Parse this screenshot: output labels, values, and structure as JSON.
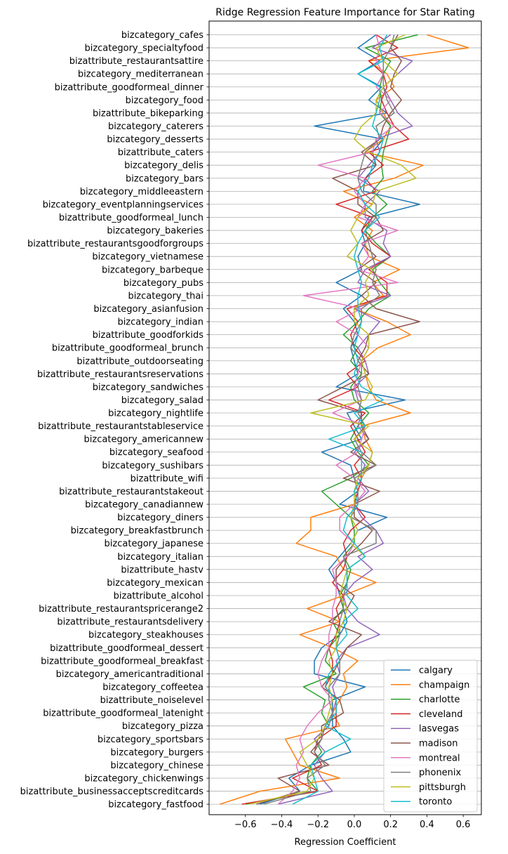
{
  "chart_data": {
    "type": "line",
    "orientation": "horizontal",
    "title": "Ridge Regression Feature Importance for Star Rating",
    "xlabel": "Regression Coefficient",
    "ylabel": "",
    "xlim": [
      -0.8,
      0.7
    ],
    "xticks": [
      -0.6,
      -0.4,
      -0.2,
      0.0,
      0.2,
      0.4,
      0.6
    ],
    "xtick_labels": [
      "−0.6",
      "−0.4",
      "−0.2",
      "0.0",
      "0.2",
      "0.4",
      "0.6"
    ],
    "grid": "horizontal",
    "legend_position": "lower-right",
    "categories": [
      "bizcategory_cafes",
      "bizcategory_specialtyfood",
      "bizattribute_restaurantsattire",
      "bizcategory_mediterranean",
      "bizattribute_goodformeal_dinner",
      "bizcategory_food",
      "bizattribute_bikeparking",
      "bizcategory_caterers",
      "bizcategory_desserts",
      "bizattribute_caters",
      "bizcategory_delis",
      "bizcategory_bars",
      "bizcategory_middleeastern",
      "bizcategory_eventplanningservices",
      "bizattribute_goodformeal_lunch",
      "bizcategory_bakeries",
      "bizattribute_restaurantsgoodforgroups",
      "bizcategory_vietnamese",
      "bizcategory_barbeque",
      "bizcategory_pubs",
      "bizcategory_thai",
      "bizcategory_asianfusion",
      "bizcategory_indian",
      "bizattribute_goodforkids",
      "bizattribute_goodformeal_brunch",
      "bizattribute_outdoorseating",
      "bizattribute_restaurantsreservations",
      "bizcategory_sandwiches",
      "bizcategory_salad",
      "bizcategory_nightlife",
      "bizattribute_restaurantstableservice",
      "bizcategory_americannew",
      "bizcategory_seafood",
      "bizcategory_sushibars",
      "bizattribute_wifi",
      "bizattribute_restaurantstakeout",
      "bizcategory_canadiannew",
      "bizcategory_diners",
      "bizcategory_breakfastbrunch",
      "bizcategory_japanese",
      "bizcategory_italian",
      "bizattribute_hastv",
      "bizcategory_mexican",
      "bizattribute_alcohol",
      "bizattribute_restaurantspricerange2",
      "bizattribute_restaurantsdelivery",
      "bizcategory_steakhouses",
      "bizattribute_goodformeal_dessert",
      "bizattribute_goodformeal_breakfast",
      "bizcategory_americantraditional",
      "bizcategory_coffeetea",
      "bizattribute_noiselevel",
      "bizattribute_goodformeal_latenight",
      "bizcategory_pizza",
      "bizcategory_sportsbars",
      "bizcategory_burgers",
      "bizcategory_chinese",
      "bizcategory_chickenwings",
      "bizattribute_businessacceptscreditcards",
      "bizcategory_fastfood"
    ],
    "series": [
      {
        "name": "calgary",
        "color": "#1f77b4",
        "values": [
          0.12,
          0.02,
          0.14,
          0.02,
          0.15,
          0.08,
          0.18,
          -0.22,
          0.16,
          0.1,
          0.12,
          0.06,
          0.05,
          0.36,
          0.08,
          0.04,
          0.06,
          0.02,
          0.04,
          -0.1,
          0.04,
          -0.06,
          0.0,
          0.02,
          -0.02,
          0.0,
          0.02,
          -0.1,
          0.28,
          -0.04,
          0.0,
          0.04,
          -0.18,
          -0.02,
          0.0,
          0.02,
          -0.08,
          0.18,
          0.02,
          -0.02,
          -0.08,
          -0.14,
          -0.1,
          -0.08,
          -0.06,
          -0.04,
          -0.08,
          -0.18,
          -0.22,
          -0.22,
          0.06,
          -0.12,
          -0.12,
          -0.12,
          -0.06,
          -0.02,
          -0.24,
          -0.36,
          -0.3,
          -0.52
        ]
      },
      {
        "name": "champaign",
        "color": "#ff7f0e",
        "values": [
          0.4,
          0.63,
          0.08,
          0.18,
          0.22,
          0.12,
          0.16,
          0.2,
          0.16,
          0.06,
          0.38,
          0.22,
          -0.06,
          0.1,
          0.0,
          0.1,
          0.06,
          0.08,
          0.25,
          0.1,
          0.16,
          0.0,
          0.18,
          0.31,
          0.13,
          0.04,
          0.06,
          0.08,
          0.12,
          0.31,
          0.04,
          0.06,
          0.1,
          0.08,
          0.04,
          0.02,
          0.0,
          -0.24,
          -0.24,
          -0.32,
          -0.1,
          -0.06,
          0.12,
          -0.06,
          -0.26,
          -0.08,
          -0.3,
          -0.12,
          0.02,
          -0.06,
          -0.04,
          -0.08,
          -0.12,
          -0.08,
          -0.38,
          -0.34,
          -0.3,
          -0.08,
          -0.52,
          -0.74
        ]
      },
      {
        "name": "charlotte",
        "color": "#2ca02c",
        "values": [
          0.35,
          0.06,
          0.2,
          0.16,
          0.14,
          0.15,
          0.14,
          0.2,
          0.18,
          0.16,
          0.15,
          0.16,
          0.1,
          0.18,
          0.1,
          0.06,
          0.12,
          0.2,
          0.1,
          0.14,
          0.2,
          0.08,
          0.02,
          -0.06,
          0.02,
          -0.02,
          0.04,
          -0.02,
          0.0,
          0.08,
          0.02,
          -0.02,
          0.02,
          0.08,
          -0.02,
          -0.18,
          -0.1,
          -0.02,
          0.0,
          0.0,
          -0.06,
          -0.02,
          -0.04,
          -0.08,
          -0.06,
          -0.12,
          -0.08,
          -0.14,
          -0.16,
          -0.1,
          -0.28,
          -0.16,
          -0.18,
          -0.14,
          -0.22,
          -0.18,
          -0.24,
          -0.26,
          -0.2,
          -0.6
        ]
      },
      {
        "name": "cleveland",
        "color": "#d62728",
        "values": [
          0.12,
          0.24,
          0.08,
          0.16,
          0.18,
          0.15,
          0.18,
          0.22,
          0.3,
          0.08,
          0.16,
          0.06,
          0.12,
          -0.1,
          0.1,
          0.04,
          0.1,
          0.2,
          0.08,
          0.18,
          0.18,
          -0.04,
          0.02,
          -0.02,
          0.0,
          0.06,
          -0.04,
          0.02,
          -0.14,
          0.06,
          -0.02,
          0.02,
          0.06,
          0.0,
          0.04,
          0.02,
          0.0,
          0.06,
          -0.02,
          -0.06,
          -0.04,
          -0.06,
          -0.12,
          -0.06,
          -0.1,
          -0.08,
          -0.1,
          -0.14,
          -0.12,
          -0.12,
          -0.16,
          -0.1,
          -0.1,
          -0.1,
          -0.2,
          -0.22,
          -0.18,
          -0.34,
          -0.2,
          -0.62
        ]
      },
      {
        "name": "lasvegas",
        "color": "#9467bd",
        "values": [
          0.2,
          0.1,
          0.32,
          0.24,
          0.16,
          0.2,
          0.24,
          0.32,
          0.12,
          0.14,
          0.08,
          0.02,
          0.14,
          0.06,
          0.06,
          0.18,
          0.16,
          0.2,
          0.06,
          0.02,
          0.2,
          0.0,
          0.14,
          0.08,
          0.02,
          0.06,
          0.08,
          0.0,
          0.02,
          0.04,
          0.02,
          0.08,
          0.0,
          0.06,
          0.02,
          0.08,
          0.0,
          0.04,
          0.12,
          0.16,
          0.02,
          0.1,
          0.0,
          -0.06,
          -0.04,
          0.02,
          0.14,
          -0.04,
          -0.1,
          -0.08,
          -0.12,
          -0.1,
          -0.12,
          -0.14,
          -0.22,
          -0.16,
          -0.22,
          -0.18,
          -0.12,
          -0.42
        ]
      },
      {
        "name": "madison",
        "color": "#8c564b",
        "values": [
          0.24,
          0.2,
          0.26,
          0.22,
          0.2,
          0.26,
          0.2,
          0.16,
          0.14,
          0.04,
          0.12,
          -0.12,
          0.02,
          0.02,
          0.12,
          0.16,
          0.04,
          0.12,
          0.02,
          0.12,
          0.04,
          0.12,
          0.36,
          0.08,
          0.06,
          0.02,
          0.08,
          -0.06,
          -0.2,
          0.04,
          0.04,
          0.08,
          -0.02,
          0.12,
          -0.06,
          0.14,
          0.0,
          0.0,
          0.1,
          0.04,
          -0.04,
          -0.1,
          -0.1,
          0.0,
          -0.04,
          -0.14,
          0.04,
          -0.04,
          -0.08,
          -0.12,
          -0.18,
          -0.08,
          -0.06,
          -0.18,
          -0.18,
          -0.24,
          -0.14,
          -0.42,
          -0.3,
          -0.54
        ]
      },
      {
        "name": "montreal",
        "color": "#e377c2",
        "values": [
          0.12,
          0.14,
          0.12,
          0.16,
          0.12,
          0.2,
          0.14,
          0.22,
          0.12,
          0.1,
          -0.2,
          0.06,
          0.0,
          0.06,
          0.02,
          0.24,
          0.04,
          0.08,
          0.02,
          0.24,
          -0.28,
          0.04,
          -0.1,
          0.02,
          0.08,
          0.04,
          0.02,
          0.0,
          0.04,
          -0.12,
          0.06,
          0.04,
          0.02,
          -0.1,
          0.0,
          0.06,
          0.0,
          -0.08,
          -0.08,
          0.0,
          -0.04,
          -0.12,
          -0.1,
          -0.1,
          -0.12,
          -0.12,
          -0.14,
          -0.14,
          -0.18,
          -0.2,
          -0.18,
          -0.12,
          -0.2,
          -0.26,
          -0.3,
          -0.28,
          -0.32,
          -0.3,
          -0.34,
          -0.42
        ]
      },
      {
        "name": "phonenix",
        "color": "#7f7f7f",
        "values": [
          0.22,
          0.2,
          0.16,
          0.16,
          0.16,
          0.18,
          0.22,
          0.12,
          0.14,
          0.06,
          0.04,
          0.02,
          0.04,
          0.12,
          0.12,
          0.06,
          0.08,
          0.1,
          0.12,
          0.1,
          0.14,
          0.04,
          0.04,
          0.0,
          -0.02,
          0.04,
          0.04,
          0.02,
          0.04,
          0.02,
          0.06,
          0.0,
          0.04,
          0.12,
          0.0,
          0.02,
          0.02,
          -0.02,
          0.12,
          0.12,
          -0.06,
          -0.04,
          -0.04,
          -0.06,
          -0.06,
          -0.08,
          -0.08,
          -0.1,
          -0.08,
          -0.08,
          -0.14,
          -0.14,
          -0.12,
          -0.16,
          -0.18,
          -0.22,
          -0.16,
          -0.26,
          -0.24,
          -0.5
        ]
      },
      {
        "name": "pittsburgh",
        "color": "#bcbd22",
        "values": [
          0.28,
          0.12,
          0.16,
          0.24,
          0.16,
          0.12,
          0.12,
          0.04,
          0.0,
          0.08,
          0.26,
          0.34,
          0.12,
          0.1,
          0.02,
          -0.02,
          0.02,
          -0.04,
          0.1,
          0.06,
          0.08,
          0.0,
          0.0,
          0.08,
          0.08,
          0.04,
          0.06,
          0.1,
          0.06,
          -0.24,
          0.08,
          0.0,
          0.1,
          0.08,
          0.02,
          0.0,
          0.0,
          -0.02,
          0.02,
          -0.02,
          0.06,
          -0.04,
          -0.06,
          -0.08,
          -0.04,
          -0.06,
          -0.1,
          -0.1,
          -0.14,
          -0.12,
          -0.14,
          -0.12,
          -0.14,
          -0.16,
          -0.2,
          -0.3,
          -0.26,
          -0.22,
          -0.26,
          -0.58
        ]
      },
      {
        "name": "toronto",
        "color": "#17becf",
        "values": [
          0.18,
          0.14,
          0.16,
          0.02,
          0.14,
          0.14,
          0.12,
          0.1,
          0.16,
          0.14,
          0.1,
          0.08,
          0.02,
          0.06,
          0.14,
          0.06,
          0.02,
          0.0,
          0.02,
          0.04,
          0.02,
          0.02,
          0.04,
          0.02,
          0.0,
          0.02,
          0.0,
          0.04,
          0.16,
          0.0,
          0.06,
          -0.14,
          0.04,
          0.04,
          0.04,
          0.0,
          0.02,
          -0.04,
          -0.06,
          0.0,
          0.06,
          -0.04,
          -0.04,
          -0.04,
          0.02,
          -0.06,
          -0.04,
          -0.1,
          -0.08,
          -0.14,
          -0.16,
          -0.1,
          -0.1,
          -0.16,
          -0.02,
          -0.16,
          -0.24,
          -0.22,
          -0.2,
          -0.34
        ]
      }
    ]
  }
}
